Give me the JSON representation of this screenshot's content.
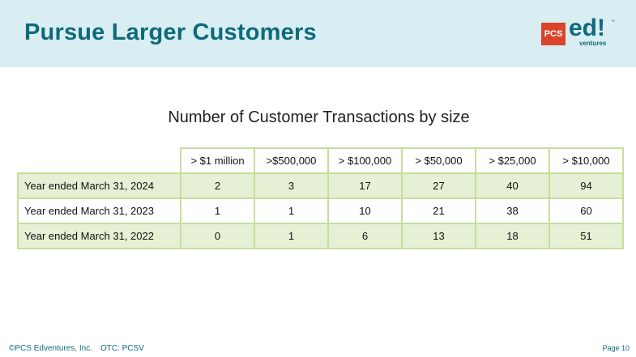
{
  "header": {
    "title": "Pursue Larger Customers",
    "logo": {
      "badge_text": "PCS",
      "wordmark": "ed!",
      "tagline": "ventures",
      "trademark": "™"
    },
    "background_color": "#d9eef2",
    "title_color": "#0e6a7b",
    "badge_color": "#d9442b"
  },
  "table": {
    "caption": "Number of Customer Transactions by size",
    "columns": [
      "> $1 million",
      ">$500,000",
      "> $100,000",
      "> $50,000",
      "> $25,000",
      "> $10,000"
    ],
    "rows": [
      {
        "label": "Year ended March 31, 2024",
        "values": [
          "2",
          "3",
          "17",
          "27",
          "40",
          "94"
        ]
      },
      {
        "label": "Year ended March 31, 2023",
        "values": [
          "1",
          "1",
          "10",
          "21",
          "38",
          "60"
        ]
      },
      {
        "label": "Year ended March 31, 2022",
        "values": [
          "0",
          "1",
          "6",
          "13",
          "18",
          "51"
        ]
      }
    ],
    "border_color": "#c6de9d",
    "shade_color": "#e6f0d4"
  },
  "footer": {
    "copyright": "©PCS Edventures, Inc.",
    "ticker": "OTC: PCSV",
    "page": "Page 10"
  }
}
